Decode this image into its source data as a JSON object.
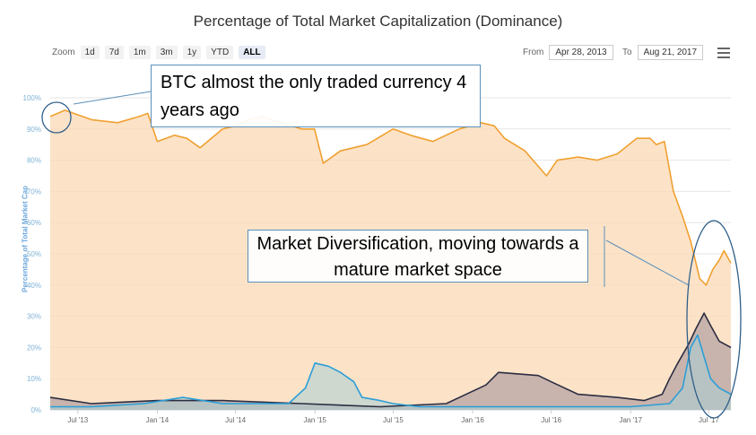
{
  "chart_data": {
    "type": "area",
    "title": "Percentage of Total Market Capitalization (Dominance)",
    "ylabel": "Percentage of Total Market Cap",
    "ylim": [
      0,
      100
    ],
    "y_ticks": [
      "0%",
      "10%",
      "20%",
      "30%",
      "40%",
      "50%",
      "60%",
      "70%",
      "80%",
      "90%",
      "100%"
    ],
    "x_ticks": [
      "Jul '13",
      "Jan '14",
      "Jul '14",
      "Jan '15",
      "Jul '15",
      "Jan '16",
      "Jul '16",
      "Jan '17",
      "Jul '17"
    ],
    "x_range": [
      "2013-04-28",
      "2017-08-21"
    ],
    "grid": true,
    "series": [
      {
        "color": "#f0a030",
        "x": [
          "2013-04-28",
          "2013-06-01",
          "2013-08-01",
          "2013-10-01",
          "2013-11-20",
          "2013-12-10",
          "2014-01-01",
          "2014-02-10",
          "2014-03-10",
          "2014-04-10",
          "2014-06-01",
          "2014-07-01",
          "2014-08-01",
          "2014-09-01",
          "2014-10-15",
          "2014-12-01",
          "2014-12-31",
          "2015-01-20",
          "2015-03-01",
          "2015-05-01",
          "2015-07-01",
          "2015-08-10",
          "2015-10-01",
          "2015-12-01",
          "2016-01-20",
          "2016-02-20",
          "2016-03-15",
          "2016-05-01",
          "2016-06-20",
          "2016-07-15",
          "2016-09-01",
          "2016-10-15",
          "2016-12-01",
          "2017-01-15",
          "2017-02-15",
          "2017-03-01",
          "2017-03-20",
          "2017-04-10",
          "2017-05-01",
          "2017-05-20",
          "2017-06-10",
          "2017-06-25",
          "2017-07-10",
          "2017-07-25",
          "2017-08-05",
          "2017-08-21"
        ],
        "values": [
          94,
          96,
          93,
          92,
          94,
          95,
          86,
          88,
          87,
          84,
          90,
          91,
          93,
          94,
          92,
          90,
          90,
          79,
          83,
          85,
          90,
          88,
          86,
          90,
          92,
          91,
          87,
          83,
          75,
          80,
          81,
          80,
          82,
          87,
          87,
          85,
          86,
          70,
          62,
          54,
          42,
          40,
          45,
          48,
          51,
          47
        ]
      },
      {
        "color": "#2b2d42",
        "fill": "#9e8e98",
        "x": [
          "2013-04-28",
          "2013-08-01",
          "2014-01-01",
          "2014-06-01",
          "2014-12-01",
          "2015-06-01",
          "2015-11-01",
          "2016-02-01",
          "2016-03-01",
          "2016-06-01",
          "2016-07-01",
          "2016-09-01",
          "2016-12-01",
          "2017-02-01",
          "2017-03-15",
          "2017-04-01",
          "2017-04-20",
          "2017-05-15",
          "2017-06-01",
          "2017-06-20",
          "2017-07-05",
          "2017-07-25",
          "2017-08-21"
        ],
        "values": [
          4,
          2,
          3,
          3,
          2,
          1,
          2,
          8,
          12,
          11,
          9,
          5,
          4,
          3,
          5,
          10,
          15,
          21,
          26,
          31,
          27,
          22,
          20
        ]
      },
      {
        "color": "#2a9ed8",
        "fill": "#a8cfd4",
        "x": [
          "2013-04-28",
          "2013-08-01",
          "2013-12-01",
          "2014-03-01",
          "2014-06-01",
          "2014-11-01",
          "2014-12-10",
          "2015-01-01",
          "2015-02-01",
          "2015-03-01",
          "2015-04-01",
          "2015-04-20",
          "2015-06-01",
          "2015-07-01",
          "2015-09-01",
          "2015-12-01",
          "2016-03-01",
          "2016-06-01",
          "2016-09-01",
          "2017-01-01",
          "2017-04-01",
          "2017-05-01",
          "2017-05-20",
          "2017-06-05",
          "2017-06-20",
          "2017-07-05",
          "2017-07-25",
          "2017-08-21"
        ],
        "values": [
          1,
          1,
          2,
          4,
          2,
          2,
          7,
          15,
          14,
          12,
          9,
          4,
          3,
          2,
          1,
          1,
          1,
          1,
          1,
          1,
          2,
          7,
          20,
          24,
          17,
          10,
          7,
          5
        ]
      }
    ],
    "annotations": [
      "BTC almost the only traded currency 4 years ago",
      "Market Diversification, moving towards a mature market space"
    ]
  },
  "ui": {
    "zoom_label": "Zoom",
    "zoom_buttons": [
      "1d",
      "7d",
      "1m",
      "3m",
      "1y",
      "YTD",
      "ALL"
    ],
    "from_label": "From",
    "from_value": "Apr 28, 2013",
    "to_label": "To",
    "to_value": "Aug 21, 2017",
    "menu_icon": "hamburger-menu-icon"
  }
}
